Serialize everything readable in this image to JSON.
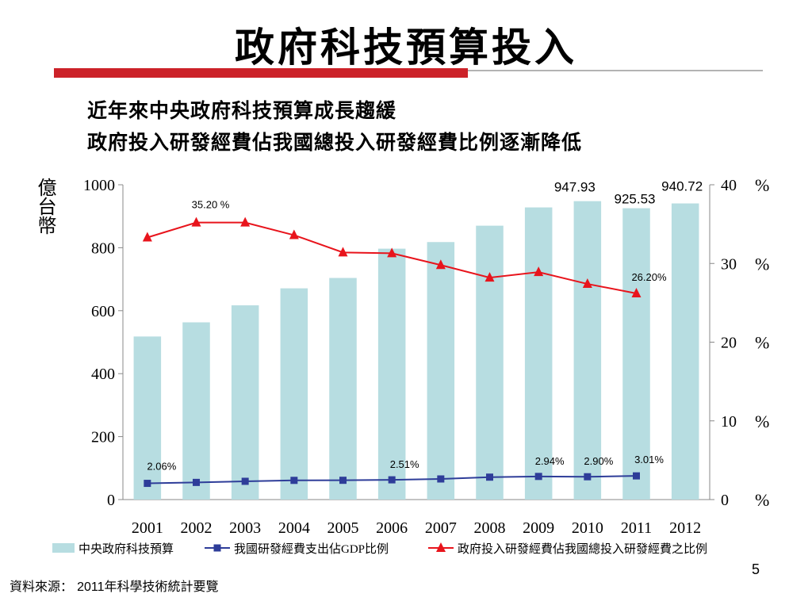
{
  "slide": {
    "title": "政府科技預算投入",
    "subtitle_1": "近年來中央政府科技預算成長趨緩",
    "subtitle_2": "政府投入研發經費佔我國總投入研發經費比例逐漸降低",
    "source_label": "資料來源：",
    "source_num": "2011",
    "source_rest": "年科學技術統計要覽",
    "page_number": "5"
  },
  "chart_data": {
    "type": "bar",
    "y_left_unit": "億台幣",
    "y_right_unit_marks": [
      "%",
      "%",
      "%",
      "%",
      "%"
    ],
    "categories": [
      "2001",
      "2002",
      "2003",
      "2004",
      "2005",
      "2006",
      "2007",
      "2008",
      "2009",
      "2010",
      "2011",
      "2012"
    ],
    "ylim_left": [
      0,
      1000
    ],
    "yticks_left": [
      "0",
      "200",
      "400",
      "600",
      "800",
      "1000"
    ],
    "ylim_right": [
      0,
      40
    ],
    "yticks_right": [
      "0",
      "10",
      "20",
      "30",
      "40"
    ],
    "series": [
      {
        "name": "中央政府科技預算",
        "type": "bar",
        "axis": "left",
        "color": "#b7dde1",
        "values": [
          518,
          563,
          617,
          671,
          704,
          797,
          818,
          870,
          928,
          947.93,
          925.53,
          940.72
        ]
      },
      {
        "name": "我國研發經費支出佔GDP比例",
        "type": "line",
        "axis": "right",
        "marker": "square",
        "color": "#2e3d99",
        "values": [
          2.06,
          2.18,
          2.32,
          2.44,
          2.45,
          2.51,
          2.62,
          2.85,
          2.94,
          2.9,
          3.01,
          null
        ]
      },
      {
        "name": "政府投入研發經費佔我國總投入研發經費之比例",
        "type": "line",
        "axis": "right",
        "marker": "triangle",
        "color": "#e8141c",
        "values": [
          33.3,
          35.2,
          35.2,
          33.6,
          31.4,
          31.3,
          29.8,
          28.2,
          28.9,
          27.4,
          26.2,
          null
        ]
      }
    ],
    "annotations": [
      {
        "text": "947.93",
        "series": 0,
        "index": 9
      },
      {
        "text": "925.53",
        "series": 0,
        "index": 10
      },
      {
        "text": "940.72",
        "series": 0,
        "index": 11
      },
      {
        "text": "35.20 %",
        "series": 2,
        "index": 1
      },
      {
        "text": "26.20%",
        "series": 2,
        "index": 10
      },
      {
        "text": "2.06%",
        "series": 1,
        "index": 0
      },
      {
        "text": "2.51%",
        "series": 1,
        "index": 5
      },
      {
        "text": "2.94%",
        "series": 1,
        "index": 8
      },
      {
        "text": "2.90%",
        "series": 1,
        "index": 9
      },
      {
        "text": "3.01%",
        "series": 1,
        "index": 10
      }
    ],
    "legend_position": "bottom"
  }
}
